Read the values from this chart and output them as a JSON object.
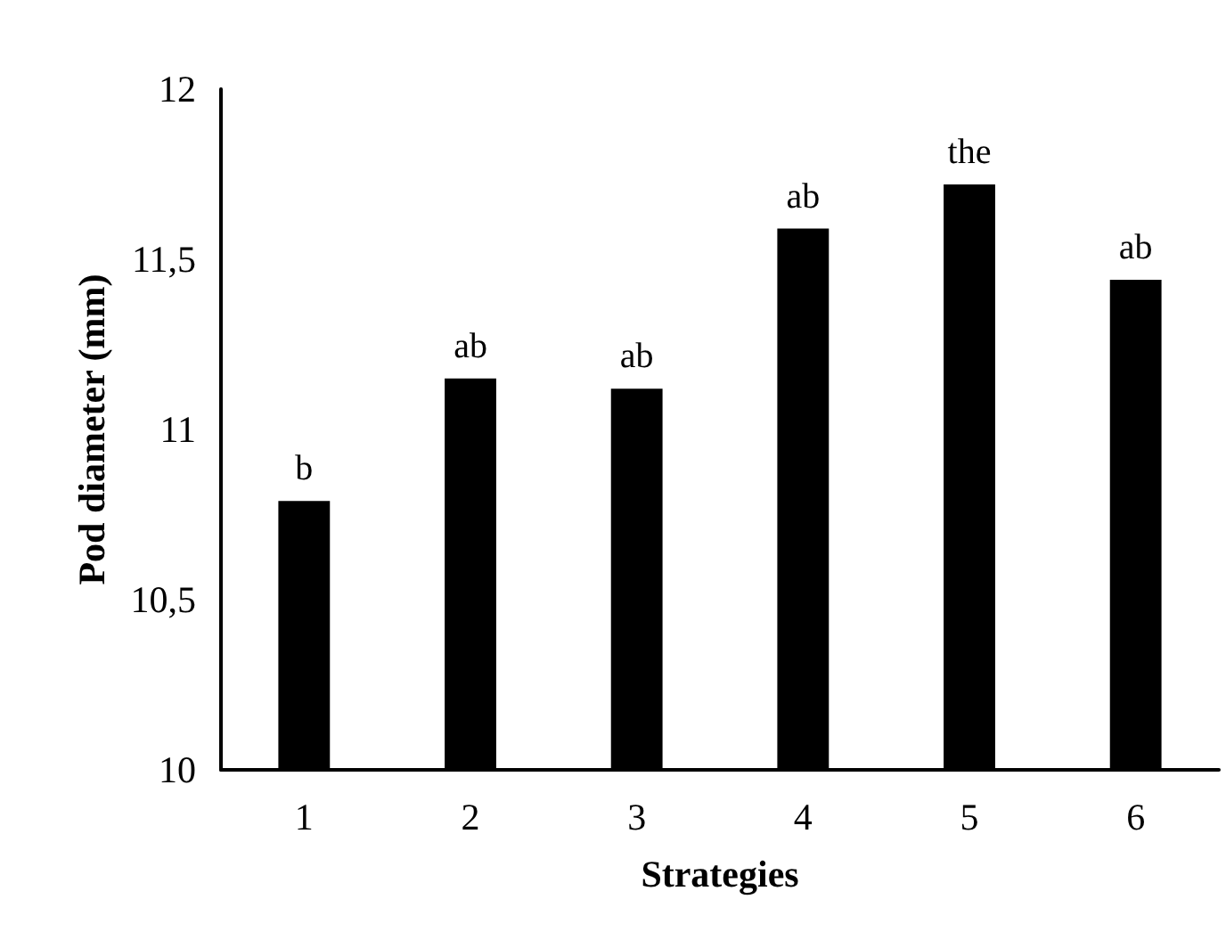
{
  "chart_data": {
    "type": "bar",
    "xlabel": "Strategies",
    "ylabel": "Pod diameter (mm)",
    "categories": [
      "1",
      "2",
      "3",
      "4",
      "5",
      "6"
    ],
    "values": [
      10.79,
      11.15,
      11.12,
      11.59,
      11.72,
      11.44
    ],
    "color": "#000000",
    "ylim": [
      10,
      12
    ],
    "yticks": [
      10,
      {
        "value": 10.5,
        "label": "10,5"
      },
      11,
      {
        "value": 11.5,
        "label": "11,5"
      },
      12
    ],
    "grid": false,
    "annotations": [
      {
        "text": "b",
        "x": "1",
        "y": 10.79
      },
      {
        "text": "ab",
        "x": "2",
        "y": 11.15
      },
      {
        "text": "ab",
        "x": "3",
        "y": 11.12
      },
      {
        "text": "ab",
        "x": "4",
        "y": 11.59
      },
      {
        "text": "the",
        "x": "5",
        "y": 11.72
      },
      {
        "text": "ab",
        "x": "6",
        "y": 11.44
      }
    ]
  }
}
